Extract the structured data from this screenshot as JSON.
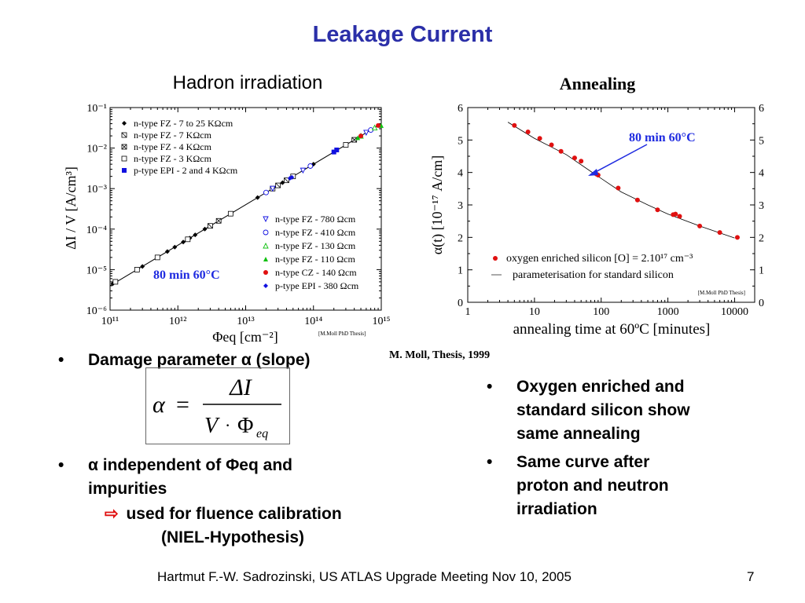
{
  "slide": {
    "title": "Leakage Current",
    "footer": "Hartmut F.-W. Sadrozinski, US ATLAS Upgrade Meeting Nov 10,  2005",
    "page_number": "7",
    "credit": "M. Moll, Thesis, 1999"
  },
  "left_panel": {
    "subtitle": "Hadron irradiation",
    "legend_top": [
      "n-type FZ - 7 to 25 KΩcm",
      "n-type FZ - 7 KΩcm",
      "n-type FZ - 4 KΩcm",
      "n-type FZ - 3 KΩcm",
      "p-type EPI - 2 and 4 KΩcm"
    ],
    "legend_bottom": [
      "n-type FZ - 780 Ωcm",
      "n-type FZ - 410 Ωcm",
      "n-type FZ - 130 Ωcm",
      "n-type FZ - 110 Ωcm",
      "n-type CZ - 140 Ωcm",
      "p-type EPI - 380 Ωcm"
    ],
    "annotation": "80 min 60°C",
    "source": "[M.Moll PhD Thesis]"
  },
  "right_panel": {
    "subtitle": "Annealing",
    "annotation": "80 min 60°C",
    "legend": [
      "oxygen enriched silicon [O] = 2.10¹⁷ cm⁻³",
      "parameterisation for standard silicon"
    ],
    "source": "[M.Moll PhD Thesis]"
  },
  "bullets_left": {
    "b1": "Damage parameter α (slope)",
    "b2_line1": "α independent of Φeq and",
    "b2_line2": "impurities",
    "b2_line3": "used for fluence calibration",
    "b2_line4": "(NIEL-Hypothesis)"
  },
  "bullets_right": {
    "b1": [
      "Oxygen enriched and",
      "standard silicon show",
      "same annealing"
    ],
    "b2": [
      "Same curve after",
      "proton and neutron",
      "irradiation"
    ]
  },
  "colors": {
    "title": "#2b2fa8",
    "annotation": "#1f2be0",
    "red": "#e01010",
    "green": "#10c010",
    "blue": "#1010e0"
  },
  "chart_data": [
    {
      "type": "scatter",
      "xscale": "log",
      "yscale": "log",
      "xlim": [
        100000000000.0,
        1000000000000000.0
      ],
      "ylim": [
        1e-06,
        0.1
      ],
      "xticks": [
        "10¹¹",
        "10¹²",
        "10¹³",
        "10¹⁴",
        "10¹⁵"
      ],
      "yticks": [
        "10⁻¹",
        "10⁻²",
        "10⁻³",
        "10⁻⁴",
        "10⁻⁵",
        "10⁻⁶"
      ],
      "series": [
        {
          "name": "n-type FZ - 7 to 25 KΩcm",
          "marker": "diamond",
          "color": "#000000",
          "x": [
            110000000000.0,
            300000000000.0,
            500000000000.0,
            700000000000.0,
            900000000000.0,
            1200000000000.0,
            1500000000000.0,
            1800000000000.0,
            2500000000000.0,
            4000000000000.0,
            6000000000000.0,
            15000000000000.0,
            25000000000000.0,
            35000000000000.0,
            50000000000000.0,
            100000000000000.0,
            200000000000000.0
          ],
          "y": [
            4.5e-06,
            1.2e-05,
            2e-05,
            2.8e-05,
            3.6e-05,
            4.8e-05,
            6e-05,
            7.2e-05,
            0.0001,
            0.00016,
            0.00024,
            0.0006,
            0.001,
            0.0014,
            0.002,
            0.004,
            0.008
          ]
        },
        {
          "name": "n-type FZ - 7 KΩcm",
          "marker": "square-slash",
          "color": "#000000",
          "x": [
            3000000000000.0,
            30000000000000.0,
            40000000000000.0
          ],
          "y": [
            0.00012,
            0.0012,
            0.0016
          ]
        },
        {
          "name": "n-type FZ - 4 KΩcm",
          "marker": "square-x",
          "color": "#000000",
          "x": [
            4000000000000.0,
            400000000000000.0
          ],
          "y": [
            0.00016,
            0.016
          ]
        },
        {
          "name": "n-type FZ - 3 KΩcm",
          "marker": "square",
          "color": "#000000",
          "x": [
            120000000000.0,
            250000000000.0,
            500000000000.0,
            1400000000000.0,
            6000000000000.0,
            25000000000000.0,
            50000000000000.0,
            300000000000000.0
          ],
          "y": [
            5e-06,
            1e-05,
            2e-05,
            5.6e-05,
            0.00024,
            0.001,
            0.002,
            0.012
          ]
        },
        {
          "name": "p-type EPI - 2 and 4 KΩcm",
          "marker": "square-filled",
          "color": "#1010e0",
          "x": [
            200000000000000.0,
            220000000000000.0
          ],
          "y": [
            0.008,
            0.009
          ]
        },
        {
          "name": "n-type FZ - 780 Ωcm",
          "marker": "triangle-down",
          "color": "#1010e0",
          "x": [
            25000000000000.0,
            70000000000000.0,
            600000000000000.0
          ],
          "y": [
            0.001,
            0.0028,
            0.024
          ]
        },
        {
          "name": "n-type FZ - 410 Ωcm",
          "marker": "circle",
          "color": "#1010e0",
          "x": [
            20000000000000.0,
            90000000000000.0,
            700000000000000.0
          ],
          "y": [
            0.0008,
            0.0036,
            0.028
          ]
        },
        {
          "name": "n-type FZ - 130 Ωcm",
          "marker": "triangle",
          "color": "#10c010",
          "x": [
            500000000000000.0,
            800000000000000.0
          ],
          "y": [
            0.02,
            0.032
          ]
        },
        {
          "name": "n-type FZ - 110 Ωcm",
          "marker": "triangle-filled",
          "color": "#10c010",
          "x": [
            450000000000000.0,
            1000000000000000.0
          ],
          "y": [
            0.018,
            0.036
          ]
        },
        {
          "name": "n-type CZ - 140 Ωcm",
          "marker": "circle-filled",
          "color": "#e01010",
          "x": [
            500000000000000.0,
            900000000000000.0
          ],
          "y": [
            0.02,
            0.036
          ]
        },
        {
          "name": "p-type EPI - 380 Ωcm",
          "marker": "diamond",
          "color": "#1010e0",
          "x": [
            45000000000000.0,
            48000000000000.0
          ],
          "y": [
            0.0018,
            0.0019
          ]
        }
      ],
      "fit_line": {
        "x": [
          100000000000.0,
          1000000000000000.0
        ],
        "y": [
          4e-06,
          0.04
        ]
      },
      "xlabel": "Φeq [cm⁻²]",
      "ylabel": "ΔI / V   [A/cm³]"
    },
    {
      "type": "scatter",
      "xscale": "log",
      "xlim": [
        1,
        20000
      ],
      "ylim": [
        0,
        6
      ],
      "xticks": [
        "1",
        "10",
        "100",
        "1000",
        "10000"
      ],
      "xtick_values": [
        1,
        10,
        100,
        1000,
        10000
      ],
      "yticks": [
        "0",
        "1",
        "2",
        "3",
        "4",
        "5",
        "6"
      ],
      "series": [
        {
          "name": "oxygen enriched silicon [O] = 2.10¹⁷ cm⁻³",
          "marker": "circle-filled",
          "color": "#e01010",
          "x": [
            5,
            8,
            12,
            18,
            25,
            40,
            50,
            85,
            90,
            180,
            350,
            700,
            1200,
            1300,
            1500,
            3000,
            6000,
            11000
          ],
          "y": [
            5.45,
            5.25,
            5.05,
            4.85,
            4.65,
            4.45,
            4.35,
            3.95,
            3.92,
            3.52,
            3.15,
            2.85,
            2.7,
            2.72,
            2.65,
            2.35,
            2.15,
            2.0
          ]
        },
        {
          "name": "parameterisation for standard silicon",
          "marker": "line",
          "color": "#000000",
          "x": [
            4,
            10,
            30,
            80,
            200,
            500,
            1000,
            3000,
            10000
          ],
          "y": [
            5.55,
            5.05,
            4.55,
            3.95,
            3.4,
            3.0,
            2.72,
            2.35,
            1.98
          ]
        }
      ],
      "xlabel": "annealing time at 60ºC [minutes]",
      "ylabel": "α(t) [10⁻¹⁷ A/cm]"
    }
  ]
}
